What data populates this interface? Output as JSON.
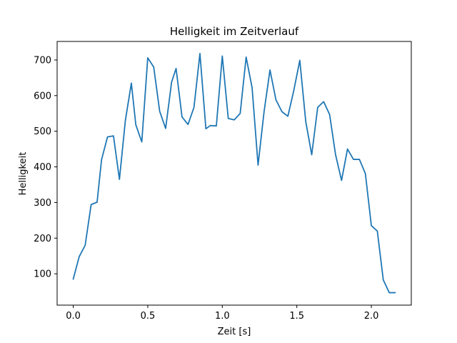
{
  "chart_data": {
    "type": "line",
    "title": "Helligkeit im Zeitverlauf",
    "xlabel": "Zeit [s]",
    "ylabel": "Helligkeit",
    "xlim": [
      -0.108,
      2.268
    ],
    "ylim": [
      12,
      752
    ],
    "xticks": [
      0.0,
      0.5,
      1.0,
      1.5,
      2.0
    ],
    "xtick_labels": [
      "0.0",
      "0.5",
      "1.0",
      "1.5",
      "2.0"
    ],
    "yticks": [
      100,
      200,
      300,
      400,
      500,
      600,
      700
    ],
    "ytick_labels": [
      "100",
      "200",
      "300",
      "400",
      "500",
      "600",
      "700"
    ],
    "grid": false,
    "series_color": "#1f77b4",
    "series": [
      {
        "x": [
          0.0,
          0.04,
          0.08,
          0.12,
          0.16,
          0.19,
          0.23,
          0.27,
          0.31,
          0.35,
          0.39,
          0.42,
          0.46,
          0.5,
          0.54,
          0.58,
          0.62,
          0.66,
          0.69,
          0.73,
          0.77,
          0.81,
          0.85,
          0.89,
          0.92,
          0.96,
          1.0,
          1.04,
          1.08,
          1.12,
          1.16,
          1.2,
          1.24,
          1.28,
          1.32,
          1.36,
          1.4,
          1.44,
          1.48,
          1.52,
          1.56,
          1.6,
          1.64,
          1.68,
          1.72,
          1.76,
          1.8,
          1.84,
          1.88,
          1.92,
          1.96,
          2.0,
          2.04,
          2.08,
          2.12,
          2.16
        ],
        "y": [
          85,
          148,
          180,
          294,
          301,
          420,
          484,
          487,
          365,
          531,
          635,
          518,
          470,
          706,
          680,
          556,
          508,
          638,
          676,
          540,
          519,
          567,
          718,
          507,
          516,
          515,
          711,
          536,
          532,
          550,
          708,
          622,
          405,
          554,
          672,
          588,
          555,
          542,
          615,
          699,
          527,
          434,
          567,
          583,
          547,
          434,
          362,
          450,
          421,
          421,
          381,
          235,
          220,
          83,
          47,
          47
        ]
      }
    ]
  }
}
